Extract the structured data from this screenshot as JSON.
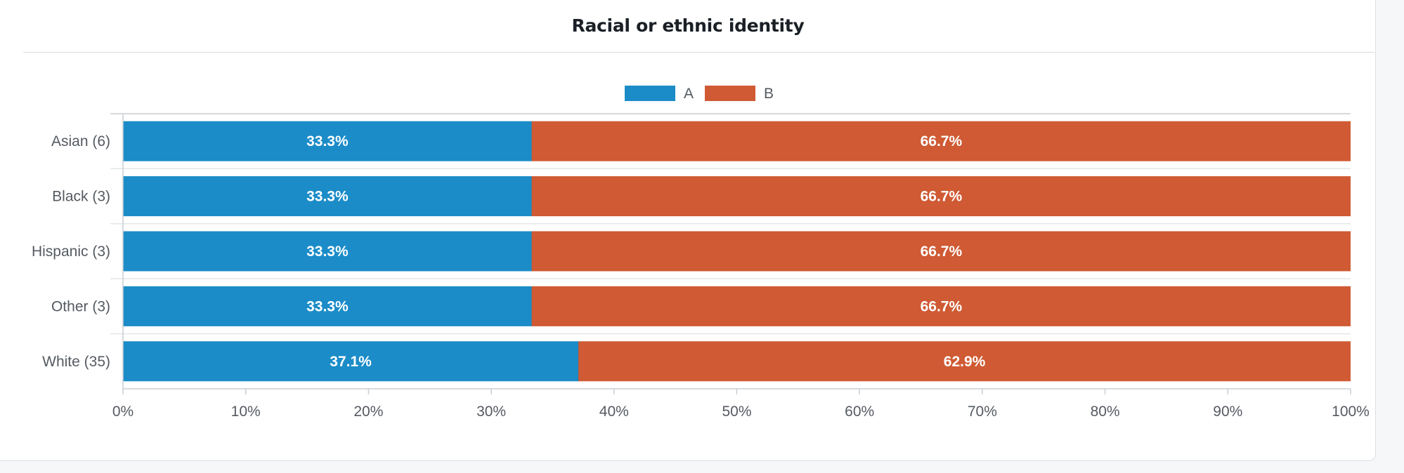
{
  "card": {
    "title": "Racial or ethnic identity"
  },
  "colors": {
    "A": "#1b8cc8",
    "B": "#cf5a33",
    "axis": "#c9cdd2",
    "grid": "#e3e6ea"
  },
  "chart_data": {
    "type": "bar",
    "orientation": "horizontal",
    "stacked": "percent",
    "title": "Racial or ethnic identity",
    "categories": [
      "Asian (6)",
      "Black (3)",
      "Hispanic (3)",
      "Other (3)",
      "White (35)"
    ],
    "series": [
      {
        "name": "A",
        "values": [
          33.3,
          33.3,
          33.3,
          33.3,
          37.1
        ],
        "labels": [
          "33.3%",
          "33.3%",
          "33.3%",
          "33.3%",
          "37.1%"
        ]
      },
      {
        "name": "B",
        "values": [
          66.7,
          66.7,
          66.7,
          66.7,
          62.9
        ],
        "labels": [
          "66.7%",
          "66.7%",
          "66.7%",
          "66.7%",
          "62.9%"
        ]
      }
    ],
    "xlim": [
      0,
      100
    ],
    "xticks": [
      "0%",
      "10%",
      "20%",
      "30%",
      "40%",
      "50%",
      "60%",
      "70%",
      "80%",
      "90%",
      "100%"
    ],
    "legend_position": "top-center",
    "grid": false
  }
}
